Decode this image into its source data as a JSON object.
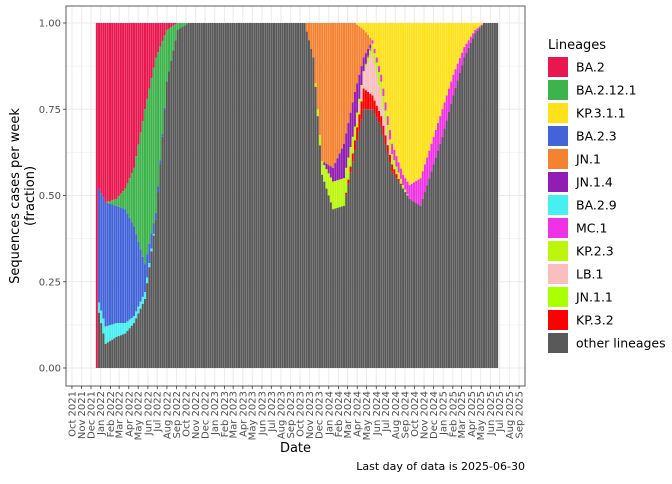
{
  "chart_data": {
    "type": "stacked-bar",
    "xlabel": "Date",
    "ylabel": "Sequences cases per week (fraction)",
    "ylabel_lines": [
      "Sequences cases per week",
      "(fraction)"
    ],
    "ylim": [
      0,
      1
    ],
    "yticks": [
      "0.00",
      "0.25",
      "0.50",
      "0.75",
      "1.00"
    ],
    "grid": true,
    "x_range": [
      "2021-09-12",
      "2025-09-20"
    ],
    "x_tick_labels": [
      "Oct 2021",
      "Nov 2021",
      "Dec 2021",
      "Jan 2022",
      "Feb 2022",
      "Mar 2022",
      "Apr 2022",
      "May 2022",
      "Jun 2022",
      "Jul 2022",
      "Aug 2022",
      "Sep 2022",
      "Oct 2022",
      "Nov 2022",
      "Dec 2022",
      "Jan 2023",
      "Feb 2023",
      "Mar 2023",
      "Apr 2023",
      "May 2023",
      "Jun 2023",
      "Jul 2023",
      "Aug 2023",
      "Sep 2023",
      "Oct 2023",
      "Nov 2023",
      "Dec 2023",
      "Jan 2024",
      "Feb 2024",
      "Mar 2024",
      "Apr 2024",
      "May 2024",
      "Jun 2024",
      "Jul 2024",
      "Aug 2024",
      "Sep 2024",
      "Oct 2024",
      "Nov 2024",
      "Dec 2024",
      "Jan 2025",
      "Feb 2025",
      "Mar 2025",
      "Apr 2025",
      "May 2025",
      "Jun 2025",
      "Jul 2025",
      "Aug 2025",
      "Sep 2025"
    ],
    "legend_title": "Lineages",
    "legend_position": "right",
    "caption": "Last day of data is 2025-06-30",
    "series": [
      {
        "name": "BA.2",
        "color": "#E8174F"
      },
      {
        "name": "BA.2.12.1",
        "color": "#3CB44B"
      },
      {
        "name": "KP.3.1.1",
        "color": "#FFE119"
      },
      {
        "name": "BA.2.3",
        "color": "#4363D8"
      },
      {
        "name": "JN.1",
        "color": "#F58231"
      },
      {
        "name": "JN.1.4",
        "color": "#911EB4"
      },
      {
        "name": "BA.2.9",
        "color": "#46F0F0"
      },
      {
        "name": "MC.1",
        "color": "#F032E6"
      },
      {
        "name": "KP.2.3",
        "color": "#BCF60C"
      },
      {
        "name": "LB.1",
        "color": "#FABEBE"
      },
      {
        "name": "JN.1.1",
        "color": "#AAFF00"
      },
      {
        "name": "KP.3.2",
        "color": "#FF0000"
      },
      {
        "name": "other lineages",
        "color": "#595959"
      }
    ],
    "keyframes": [
      {
        "date": "2021-12-20",
        "values": {
          "BA.2": 1.0
        }
      },
      {
        "date": "2021-12-27",
        "values": {
          "BA.2": 0.48,
          "BA.2.3": 0.33,
          "BA.2.9": 0.03,
          "other lineages": 0.16
        }
      },
      {
        "date": "2022-01-17",
        "values": {
          "BA.2": 0.52,
          "BA.2.3": 0.36,
          "BA.2.9": 0.05,
          "other lineages": 0.07
        }
      },
      {
        "date": "2022-02-21",
        "values": {
          "BA.2": 0.51,
          "BA.2.12.1": 0.02,
          "BA.2.3": 0.34,
          "BA.2.9": 0.04,
          "other lineages": 0.09
        }
      },
      {
        "date": "2022-03-21",
        "values": {
          "BA.2": 0.48,
          "BA.2.12.1": 0.06,
          "BA.2.3": 0.33,
          "BA.2.9": 0.03,
          "other lineages": 0.1
        }
      },
      {
        "date": "2022-04-18",
        "values": {
          "BA.2": 0.42,
          "BA.2.12.1": 0.17,
          "BA.2.3": 0.26,
          "BA.2.9": 0.02,
          "other lineages": 0.13
        }
      },
      {
        "date": "2022-05-23",
        "values": {
          "BA.2": 0.25,
          "BA.2.12.1": 0.45,
          "BA.2.3": 0.08,
          "BA.2.9": 0.02,
          "other lineages": 0.2
        }
      },
      {
        "date": "2022-06-27",
        "values": {
          "BA.2": 0.1,
          "BA.2.12.1": 0.45,
          "BA.2.3": 0.02,
          "other lineages": 0.43
        }
      },
      {
        "date": "2022-08-01",
        "values": {
          "BA.2": 0.02,
          "BA.2.12.1": 0.15,
          "other lineages": 0.83
        }
      },
      {
        "date": "2022-09-05",
        "values": {
          "BA.2.12.1": 0.02,
          "other lineages": 0.98
        }
      },
      {
        "date": "2022-10-10",
        "values": {
          "other lineages": 1.0
        }
      },
      {
        "date": "2023-10-16",
        "values": {
          "other lineages": 1.0
        }
      },
      {
        "date": "2023-11-13",
        "values": {
          "JN.1": 0.1,
          "other lineages": 0.9
        }
      },
      {
        "date": "2023-12-11",
        "values": {
          "JN.1": 0.4,
          "KP.2.3": 0.04,
          "other lineages": 0.56
        }
      },
      {
        "date": "2024-01-15",
        "values": {
          "JN.1": 0.42,
          "JN.1.4": 0.04,
          "KP.2.3": 0.08,
          "other lineages": 0.46
        }
      },
      {
        "date": "2024-02-19",
        "values": {
          "JN.1": 0.35,
          "JN.1.4": 0.1,
          "KP.2.3": 0.06,
          "JN.1.1": 0.02,
          "other lineages": 0.47
        }
      },
      {
        "date": "2024-03-25",
        "values": {
          "JN.1": 0.2,
          "JN.1.4": 0.1,
          "KP.2.3": 0.02,
          "JN.1.1": 0.02,
          "KP.3.2": 0.03,
          "other lineages": 0.63
        }
      },
      {
        "date": "2024-04-22",
        "values": {
          "JN.1": 0.08,
          "JN.1.4": 0.04,
          "KP.3.1.1": 0.02,
          "LB.1": 0.05,
          "KP.3.2": 0.06,
          "other lineages": 0.75
        }
      },
      {
        "date": "2024-05-20",
        "values": {
          "KP.3.1.1": 0.05,
          "MC.1": 0.01,
          "KP.2.3": 0.03,
          "LB.1": 0.12,
          "KP.3.2": 0.04,
          "other lineages": 0.75
        }
      },
      {
        "date": "2024-06-17",
        "values": {
          "KP.3.1.1": 0.15,
          "MC.1": 0.02,
          "KP.2.3": 0.04,
          "LB.1": 0.06,
          "KP.3.2": 0.03,
          "other lineages": 0.7
        }
      },
      {
        "date": "2024-07-22",
        "values": {
          "KP.3.1.1": 0.35,
          "MC.1": 0.03,
          "KP.2.3": 0.03,
          "KP.3.2": 0.02,
          "other lineages": 0.57
        }
      },
      {
        "date": "2024-08-26",
        "values": {
          "KP.3.1.1": 0.44,
          "MC.1": 0.03,
          "KP.2.3": 0.01,
          "other lineages": 0.52
        }
      },
      {
        "date": "2024-09-16",
        "values": {
          "KP.3.1.1": 0.47,
          "MC.1": 0.04,
          "other lineages": 0.49
        }
      },
      {
        "date": "2024-10-21",
        "values": {
          "KP.3.1.1": 0.45,
          "MC.1": 0.08,
          "other lineages": 0.47
        }
      },
      {
        "date": "2024-11-25",
        "values": {
          "KP.3.1.1": 0.35,
          "MC.1": 0.08,
          "other lineages": 0.57
        }
      },
      {
        "date": "2024-12-30",
        "values": {
          "KP.3.1.1": 0.25,
          "MC.1": 0.08,
          "other lineages": 0.67
        }
      },
      {
        "date": "2025-02-03",
        "values": {
          "KP.3.1.1": 0.15,
          "MC.1": 0.06,
          "other lineages": 0.79
        }
      },
      {
        "date": "2025-03-10",
        "values": {
          "KP.3.1.1": 0.07,
          "MC.1": 0.03,
          "other lineages": 0.9
        }
      },
      {
        "date": "2025-04-14",
        "values": {
          "KP.3.1.1": 0.02,
          "MC.1": 0.01,
          "other lineages": 0.97
        }
      },
      {
        "date": "2025-05-12",
        "values": {
          "other lineages": 1.0
        }
      },
      {
        "date": "2025-06-23",
        "values": {
          "other lineages": 1.0
        }
      }
    ]
  }
}
